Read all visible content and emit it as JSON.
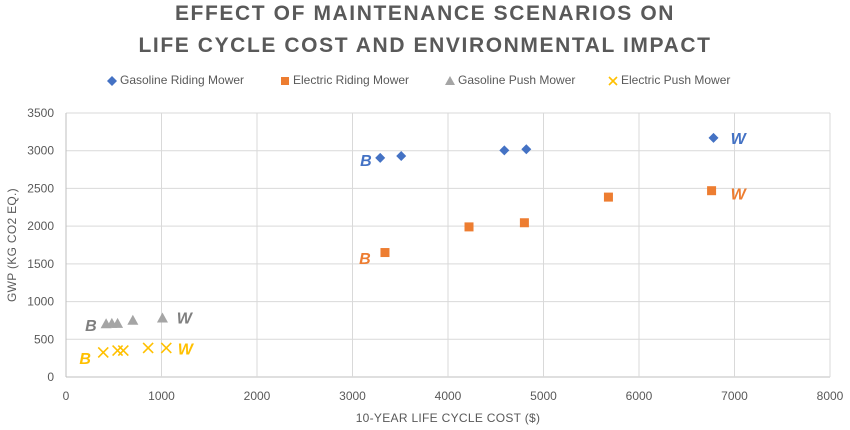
{
  "chart_data": {
    "type": "scatter",
    "title": [
      "EFFECT OF MAINTENANCE SCENARIOS ON",
      "LIFE CYCLE COST AND ENVIRONMENTAL IMPACT"
    ],
    "xlabel": "10-YEAR LIFE CYCLE COST ($)",
    "ylabel": "GWP (KG CO2 EQ.)",
    "xlim": [
      0,
      8000
    ],
    "ylim": [
      0,
      3500
    ],
    "xticks": [
      0,
      1000,
      2000,
      3000,
      4000,
      5000,
      6000,
      7000,
      8000
    ],
    "yticks": [
      0,
      500,
      1000,
      1500,
      2000,
      2500,
      3000,
      3500
    ],
    "grid": true,
    "legend_position": "top",
    "series": [
      {
        "name": "Gasoline Riding Mower",
        "marker": "diamond",
        "color": "#4472C4",
        "points": [
          [
            3290,
            2905
          ],
          [
            3510,
            2930
          ],
          [
            4590,
            3005
          ],
          [
            4820,
            3020
          ],
          [
            6780,
            3170
          ]
        ]
      },
      {
        "name": "Electric Riding Mower",
        "marker": "square",
        "color": "#ED7D31",
        "points": [
          [
            3340,
            1650
          ],
          [
            4220,
            1990
          ],
          [
            4800,
            2045
          ],
          [
            5680,
            2385
          ],
          [
            6760,
            2470
          ]
        ]
      },
      {
        "name": "Gasoline Push Mower",
        "marker": "triangle",
        "color": "#A5A5A5",
        "points": [
          [
            420,
            700
          ],
          [
            480,
            705
          ],
          [
            540,
            705
          ],
          [
            700,
            745
          ],
          [
            1010,
            775
          ]
        ]
      },
      {
        "name": "Electric Push Mower",
        "marker": "x",
        "color": "#FFC000",
        "points": [
          [
            390,
            325
          ],
          [
            540,
            350
          ],
          [
            600,
            350
          ],
          [
            860,
            385
          ],
          [
            1050,
            385
          ]
        ]
      }
    ],
    "annotations": [
      {
        "text": "B",
        "x": 3080,
        "y": 2880,
        "color": "#4472C4"
      },
      {
        "text": "W",
        "x": 6960,
        "y": 3170,
        "color": "#4472C4"
      },
      {
        "text": "B",
        "x": 3070,
        "y": 1580,
        "color": "#ED7D31"
      },
      {
        "text": "W",
        "x": 6960,
        "y": 2430,
        "color": "#ED7D31"
      },
      {
        "text": "B",
        "x": 200,
        "y": 690,
        "color": "#7F7F7F"
      },
      {
        "text": "W",
        "x": 1160,
        "y": 790,
        "color": "#7F7F7F"
      },
      {
        "text": "B",
        "x": 140,
        "y": 250,
        "color": "#FFC000"
      },
      {
        "text": "W",
        "x": 1170,
        "y": 380,
        "color": "#FFC000"
      }
    ]
  }
}
